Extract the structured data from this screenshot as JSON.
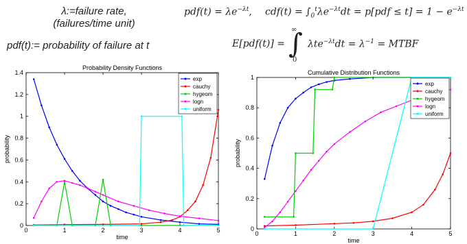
{
  "header": {
    "lambda_def_line1": "λ:=failure rate,",
    "lambda_def_line2": "(failures/time unit)",
    "pdf_def": "pdf(t):= probability of failure at t",
    "pdf_formula": "pdf(t) = λe",
    "pdf_exp": "−λt",
    "cdf_formula_a": "cdf(t) = ∫",
    "cdf_lower": "0",
    "cdf_upper": "t",
    "cdf_formula_b": "λe",
    "cdf_exp_b": "−λt",
    "cdf_formula_c": "dt = p[pdf ≤ t] = 1 − e",
    "cdf_exp_c": "−λt",
    "exp_formula_a": "E[pdf(t)] =",
    "exp_upper": "∞",
    "exp_lower": "0",
    "exp_formula_b": "λte",
    "exp_exp": "−λt",
    "exp_formula_c": "dt =  λ",
    "exp_inv": "−1",
    "exp_formula_d": " = MTBF"
  },
  "chart_data": [
    {
      "type": "line",
      "title": "Probability Density Functions",
      "xlabel": "time",
      "ylabel": "probability",
      "xlim": [
        0,
        5
      ],
      "ylim": [
        0,
        1.4
      ],
      "xticks": [
        0,
        1,
        2,
        3,
        4,
        5
      ],
      "yticks": [
        0,
        0.2,
        0.4,
        0.6,
        0.8,
        1,
        1.2,
        1.4
      ],
      "legend_position": "top-right",
      "grid": false,
      "series": [
        {
          "name": "exp",
          "color": "#0000ff",
          "points": [
            [
              0.2,
              1.34
            ],
            [
              0.4,
              1.1
            ],
            [
              0.6,
              0.9
            ],
            [
              0.8,
              0.74
            ],
            [
              1.0,
              0.61
            ],
            [
              1.2,
              0.5
            ],
            [
              1.4,
              0.41
            ],
            [
              1.6,
              0.34
            ],
            [
              1.8,
              0.28
            ],
            [
              2.0,
              0.22
            ],
            [
              2.2,
              0.18
            ],
            [
              2.4,
              0.15
            ],
            [
              2.6,
              0.12
            ],
            [
              2.8,
              0.1
            ],
            [
              3.0,
              0.08
            ],
            [
              3.5,
              0.05
            ],
            [
              4.0,
              0.03
            ],
            [
              4.5,
              0.015
            ],
            [
              5.0,
              0.01
            ]
          ]
        },
        {
          "name": "cauchy",
          "color": "#ff0000",
          "points": [
            [
              0.2,
              0.005
            ],
            [
              1.0,
              0.008
            ],
            [
              2.0,
              0.01
            ],
            [
              3.0,
              0.015
            ],
            [
              3.5,
              0.03
            ],
            [
              3.8,
              0.05
            ],
            [
              4.0,
              0.08
            ],
            [
              4.2,
              0.14
            ],
            [
              4.4,
              0.22
            ],
            [
              4.6,
              0.37
            ],
            [
              4.8,
              0.62
            ],
            [
              5.0,
              1.06
            ]
          ]
        },
        {
          "name": "hygeom",
          "color": "#00d000",
          "points": [
            [
              0.2,
              0.0
            ],
            [
              0.8,
              0.0
            ],
            [
              1.0,
              0.4
            ],
            [
              1.2,
              0.0
            ],
            [
              1.8,
              0.0
            ],
            [
              2.0,
              0.42
            ],
            [
              2.2,
              0.0
            ],
            [
              3.0,
              0.0
            ],
            [
              5.0,
              0.0
            ]
          ]
        },
        {
          "name": "logn",
          "color": "#ff00ff",
          "points": [
            [
              0.2,
              0.07
            ],
            [
              0.4,
              0.22
            ],
            [
              0.6,
              0.34
            ],
            [
              0.8,
              0.4
            ],
            [
              1.0,
              0.41
            ],
            [
              1.2,
              0.39
            ],
            [
              1.4,
              0.37
            ],
            [
              1.6,
              0.34
            ],
            [
              1.8,
              0.31
            ],
            [
              2.0,
              0.28
            ],
            [
              2.4,
              0.22
            ],
            [
              2.8,
              0.18
            ],
            [
              3.2,
              0.14
            ],
            [
              3.6,
              0.11
            ],
            [
              4.0,
              0.085
            ],
            [
              4.5,
              0.065
            ],
            [
              5.0,
              0.045
            ]
          ]
        },
        {
          "name": "uniform",
          "color": "#00ffff",
          "points": [
            [
              0.2,
              0.0
            ],
            [
              2.95,
              0.0
            ],
            [
              3.0,
              1.0
            ],
            [
              4.05,
              1.0
            ],
            [
              4.1,
              0.0
            ],
            [
              5.0,
              0.0
            ]
          ]
        }
      ]
    },
    {
      "type": "line",
      "title": "Cumulative Distribution Functions",
      "xlabel": "time",
      "ylabel": "probability",
      "xlim": [
        0,
        5
      ],
      "ylim": [
        0,
        1
      ],
      "xticks": [
        0,
        1,
        2,
        3,
        4,
        5
      ],
      "yticks": [
        0,
        0.2,
        0.4,
        0.6,
        0.8,
        1
      ],
      "legend_position": "top-right",
      "grid": false,
      "series": [
        {
          "name": "exp",
          "color": "#0000ff",
          "points": [
            [
              0.2,
              0.33
            ],
            [
              0.4,
              0.55
            ],
            [
              0.6,
              0.7
            ],
            [
              0.8,
              0.8
            ],
            [
              1.0,
              0.86
            ],
            [
              1.2,
              0.9
            ],
            [
              1.4,
              0.935
            ],
            [
              1.6,
              0.955
            ],
            [
              1.8,
              0.97
            ],
            [
              2.0,
              0.98
            ],
            [
              2.4,
              0.99
            ],
            [
              3.0,
              1.0
            ],
            [
              5.0,
              1.0
            ]
          ]
        },
        {
          "name": "cauchy",
          "color": "#ff0000",
          "points": [
            [
              0.2,
              0.02
            ],
            [
              1.0,
              0.025
            ],
            [
              2.0,
              0.035
            ],
            [
              2.5,
              0.04
            ],
            [
              3.0,
              0.05
            ],
            [
              3.5,
              0.07
            ],
            [
              4.0,
              0.11
            ],
            [
              4.3,
              0.16
            ],
            [
              4.6,
              0.26
            ],
            [
              4.8,
              0.36
            ],
            [
              5.0,
              0.5
            ]
          ]
        },
        {
          "name": "hygeom",
          "color": "#00d000",
          "points": [
            [
              0.2,
              0.08
            ],
            [
              0.95,
              0.08
            ],
            [
              1.0,
              0.5
            ],
            [
              1.45,
              0.5
            ],
            [
              1.5,
              0.92
            ],
            [
              1.95,
              0.92
            ],
            [
              2.0,
              1.0
            ],
            [
              5.0,
              1.0
            ]
          ]
        },
        {
          "name": "logn",
          "color": "#ff00ff",
          "points": [
            [
              0.2,
              0.01
            ],
            [
              0.4,
              0.05
            ],
            [
              0.6,
              0.11
            ],
            [
              0.8,
              0.18
            ],
            [
              1.0,
              0.25
            ],
            [
              1.2,
              0.32
            ],
            [
              1.4,
              0.39
            ],
            [
              1.6,
              0.45
            ],
            [
              1.8,
              0.51
            ],
            [
              2.0,
              0.56
            ],
            [
              2.4,
              0.64
            ],
            [
              2.8,
              0.71
            ],
            [
              3.2,
              0.77
            ],
            [
              3.6,
              0.81
            ],
            [
              4.0,
              0.85
            ],
            [
              4.5,
              0.89
            ],
            [
              5.0,
              0.92
            ]
          ]
        },
        {
          "name": "uniform",
          "color": "#00ffff",
          "points": [
            [
              0.2,
              0.0
            ],
            [
              3.0,
              0.0
            ],
            [
              4.0,
              1.0
            ],
            [
              5.0,
              1.0
            ]
          ]
        }
      ]
    }
  ]
}
